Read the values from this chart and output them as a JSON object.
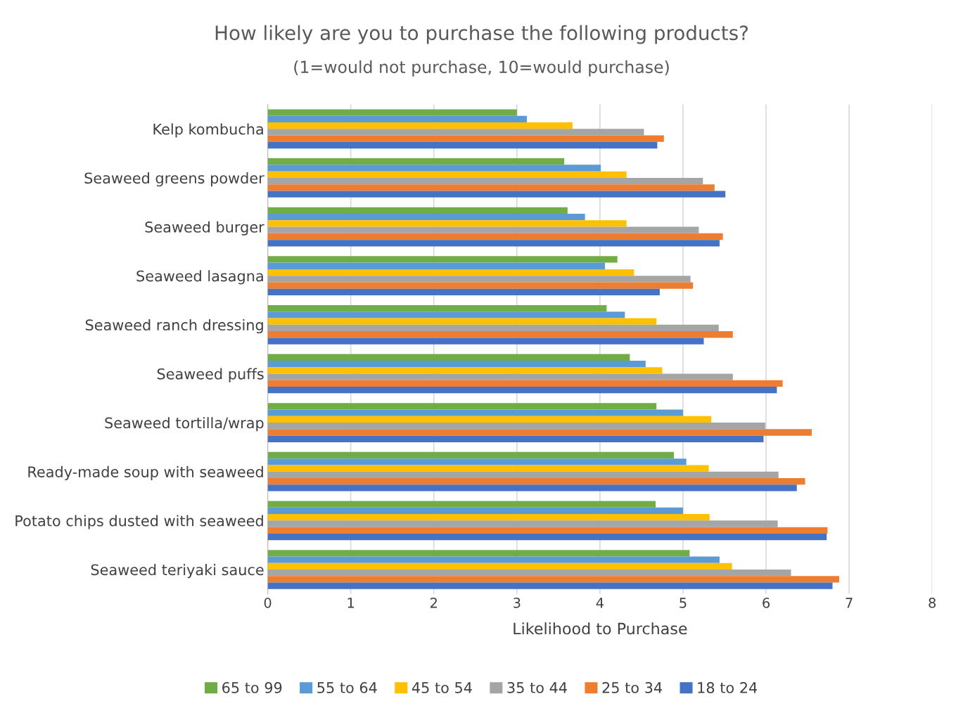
{
  "chart_data": {
    "type": "bar",
    "orientation": "horizontal",
    "title": "How likely are you to purchase the following products?",
    "subtitle": "(1=would not purchase, 10=would purchase)",
    "xlabel": "Likelihood to Purchase",
    "categories": [
      "Kelp kombucha",
      "Seaweed greens powder",
      "Seaweed burger",
      "Seaweed lasagna",
      "Seaweed ranch dressing",
      "Seaweed puffs",
      "Seaweed tortilla/wrap",
      "Ready-made soup with seaweed",
      "Potato chips dusted with seaweed",
      "Seaweed teriyaki sauce"
    ],
    "series": [
      {
        "name": "65 to 99",
        "color": "#70ad47",
        "values": [
          3.0,
          3.57,
          3.61,
          4.21,
          4.08,
          4.36,
          4.68,
          4.89,
          4.67,
          5.08
        ]
      },
      {
        "name": "55 to 64",
        "color": "#5b9bd5",
        "values": [
          3.12,
          4.01,
          3.82,
          4.06,
          4.3,
          4.55,
          5.0,
          5.04,
          5.0,
          5.44
        ]
      },
      {
        "name": "45 to 54",
        "color": "#ffc000",
        "values": [
          3.67,
          4.32,
          4.32,
          4.41,
          4.68,
          4.75,
          5.34,
          5.31,
          5.32,
          5.59
        ]
      },
      {
        "name": "35 to 44",
        "color": "#a5a5a5",
        "values": [
          4.53,
          5.24,
          5.19,
          5.09,
          5.43,
          5.6,
          5.99,
          6.15,
          6.14,
          6.3
        ]
      },
      {
        "name": "25 to 34",
        "color": "#ed7d31",
        "values": [
          4.77,
          5.38,
          5.48,
          5.12,
          5.6,
          6.2,
          6.55,
          6.47,
          6.74,
          6.88
        ]
      },
      {
        "name": "18 to 24",
        "color": "#4472c4",
        "values": [
          4.69,
          5.51,
          5.44,
          4.72,
          5.25,
          6.13,
          5.97,
          6.37,
          6.73,
          6.8
        ]
      }
    ],
    "xlim": [
      0,
      8
    ],
    "xticks": [
      0,
      1,
      2,
      3,
      4,
      5,
      6,
      7,
      8
    ],
    "grid": "x",
    "legend": "bottom"
  }
}
